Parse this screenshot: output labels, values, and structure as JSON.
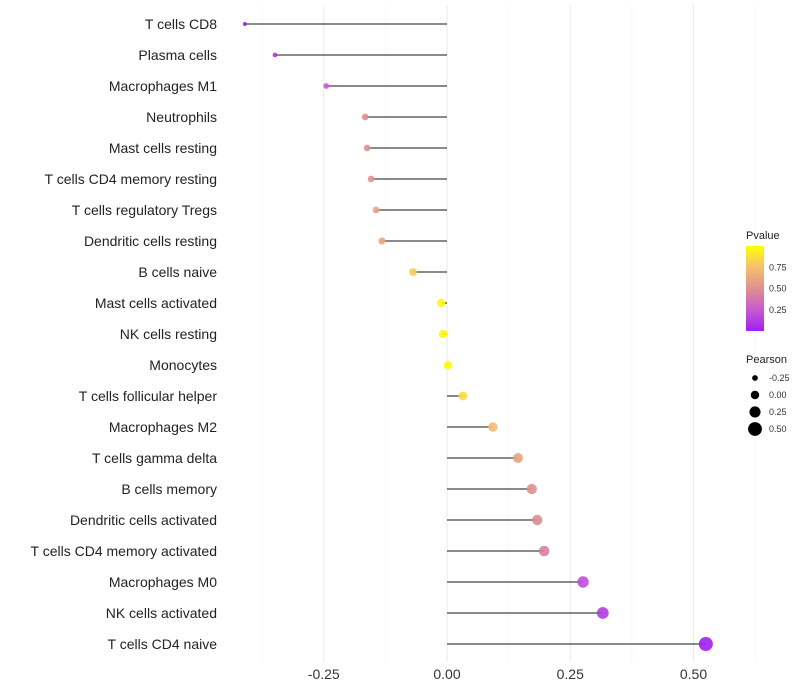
{
  "chart_data": {
    "type": "lollipop",
    "title": "",
    "xlabel": "",
    "ylabel": "",
    "xlim": [
      -0.44,
      0.56
    ],
    "xticks": [
      -0.25,
      0.0,
      0.25,
      0.5
    ],
    "xtick_labels": [
      "-0.25",
      "0.00",
      "0.25",
      "0.50"
    ],
    "grid": true,
    "categories": [
      "T cells CD8",
      "Plasma cells",
      "Macrophages M1",
      "Neutrophils",
      "Mast cells resting",
      "T cells CD4 memory resting",
      "T cells regulatory  Tregs ",
      "Dendritic cells resting",
      "B cells naive",
      "Mast cells activated",
      "NK cells resting",
      "Monocytes",
      "T cells follicular helper",
      "Macrophages M2",
      "T cells gamma delta",
      "B cells memory",
      "Dendritic cells activated",
      "T cells CD4 memory activated",
      "Macrophages M0",
      "NK cells activated",
      "T cells CD4 naive"
    ],
    "pearson": [
      -0.41,
      -0.349,
      -0.245,
      -0.166,
      -0.162,
      -0.154,
      -0.144,
      -0.132,
      -0.069,
      -0.012,
      -0.008,
      0.002,
      0.032,
      0.093,
      0.144,
      0.172,
      0.183,
      0.197,
      0.276,
      0.316,
      0.525
    ],
    "pvalue": [
      0.02,
      0.08,
      0.25,
      0.5,
      0.5,
      0.52,
      0.6,
      0.62,
      0.8,
      0.97,
      0.98,
      0.99,
      0.86,
      0.72,
      0.6,
      0.5,
      0.48,
      0.42,
      0.2,
      0.12,
      0.001
    ],
    "legend": {
      "color_title": "Pvalue",
      "color_ticks": [
        "0.25",
        "0.50",
        "0.75"
      ],
      "color_tick_values": [
        0.25,
        0.5,
        0.75
      ],
      "size_title": "Pearson",
      "size_labels": [
        "-0.25",
        "0.00",
        "0.25",
        "0.50"
      ],
      "size_values": [
        -0.25,
        0,
        0.25,
        0.5
      ],
      "placement": "right"
    },
    "colors": {
      "low": "#a020f0",
      "mid": "#e0908f",
      "high": "#ffff00"
    }
  }
}
